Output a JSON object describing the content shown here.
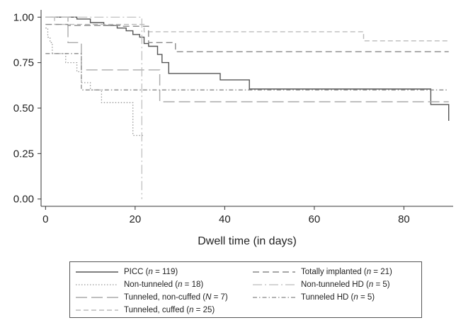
{
  "chart_data": {
    "type": "line",
    "step": true,
    "xlabel": "Dwell time (in days)",
    "ylabel": "",
    "xlim": [
      -1,
      91
    ],
    "ylim": [
      -0.04,
      1.04
    ],
    "xticks": [
      0,
      20,
      40,
      60,
      80
    ],
    "yticks": [
      0.0,
      0.25,
      0.5,
      0.75,
      1.0
    ],
    "xtick_labels": [
      "0",
      "20",
      "40",
      "60",
      "80"
    ],
    "ytick_labels": [
      "0.00",
      "0.25",
      "0.50",
      "0.75",
      "1.00"
    ],
    "grid": false,
    "legend_position": "bottom",
    "series": [
      {
        "name": "PICC (n = 119)",
        "color": "#555555",
        "dash": "",
        "width": 1.4,
        "points": [
          [
            0,
            1.0
          ],
          [
            7,
            0.99
          ],
          [
            10,
            0.97
          ],
          [
            13,
            0.955
          ],
          [
            16,
            0.94
          ],
          [
            18,
            0.925
          ],
          [
            19.5,
            0.905
          ],
          [
            21,
            0.89
          ],
          [
            22,
            0.855
          ],
          [
            23,
            0.84
          ],
          [
            25,
            0.795
          ],
          [
            26,
            0.75
          ],
          [
            27.5,
            0.69
          ],
          [
            39,
            0.655
          ],
          [
            45.5,
            0.605
          ],
          [
            86,
            0.52
          ],
          [
            90,
            0.43
          ]
        ]
      },
      {
        "name": "Non-tunneled (n = 18)",
        "color": "#999999",
        "dash": "1.5,2.5",
        "width": 1.3,
        "points": [
          [
            0,
            0.94
          ],
          [
            0.5,
            0.89
          ],
          [
            1,
            0.86
          ],
          [
            1.5,
            0.8
          ],
          [
            4.5,
            0.75
          ],
          [
            7,
            0.7
          ],
          [
            8,
            0.64
          ],
          [
            10,
            0.6
          ],
          [
            12.5,
            0.53
          ],
          [
            19.5,
            0.35
          ],
          [
            22,
            0.35
          ]
        ]
      },
      {
        "name": "Tunneled, non-cuffed (N = 7)",
        "color": "#aaaaaa",
        "dash": "16,6",
        "width": 1.4,
        "points": [
          [
            0,
            1.0
          ],
          [
            5,
            0.86
          ],
          [
            8,
            0.71
          ],
          [
            25.5,
            0.535
          ],
          [
            90,
            0.535
          ]
        ]
      },
      {
        "name": "Tunneled, cuffed (n = 25)",
        "color": "#bbbbbb",
        "dash": "7,4",
        "width": 1.4,
        "points": [
          [
            0,
            1.0
          ],
          [
            2,
            0.96
          ],
          [
            22,
            0.92
          ],
          [
            71,
            0.87
          ],
          [
            90,
            0.87
          ]
        ]
      },
      {
        "name": "Totally implanted (n = 21)",
        "color": "#888888",
        "dash": "9,5",
        "width": 1.4,
        "points": [
          [
            0,
            0.96
          ],
          [
            5,
            0.955
          ],
          [
            17,
            0.95
          ],
          [
            23,
            0.86
          ],
          [
            29,
            0.81
          ],
          [
            90,
            0.81
          ]
        ]
      },
      {
        "name": "Non-tunneled HD (n = 5)",
        "color": "#bbbbbb",
        "dash": "13,4,2,4",
        "width": 1.2,
        "points": [
          [
            0,
            1.0
          ],
          [
            21.5,
            1.0
          ],
          [
            21.5,
            0.0
          ]
        ]
      },
      {
        "name": "Tunneled HD (n = 5)",
        "color": "#888888",
        "dash": "6,3,1.5,3",
        "width": 1.3,
        "points": [
          [
            0,
            0.8
          ],
          [
            8,
            0.6
          ],
          [
            90,
            0.6
          ]
        ]
      }
    ]
  },
  "legend": {
    "items": [
      {
        "label": "PICC (",
        "n_label": "n",
        "suffix": " = 119)"
      },
      {
        "label": "Totally implanted (",
        "n_label": "n",
        "suffix": " = 21)"
      },
      {
        "label": "Non-tunneled (",
        "n_label": "n",
        "suffix": " = 18)"
      },
      {
        "label": "Non-tunneled HD (",
        "n_label": "n",
        "suffix": " = 5)"
      },
      {
        "label": "Tunneled, non-cuffed (",
        "n_label": "N",
        "suffix": " = 7)"
      },
      {
        "label": "Tunneled HD (",
        "n_label": "n",
        "suffix": " = 5)"
      },
      {
        "label": "Tunneled, cuffed (",
        "n_label": "n",
        "suffix": " = 25)"
      }
    ]
  }
}
